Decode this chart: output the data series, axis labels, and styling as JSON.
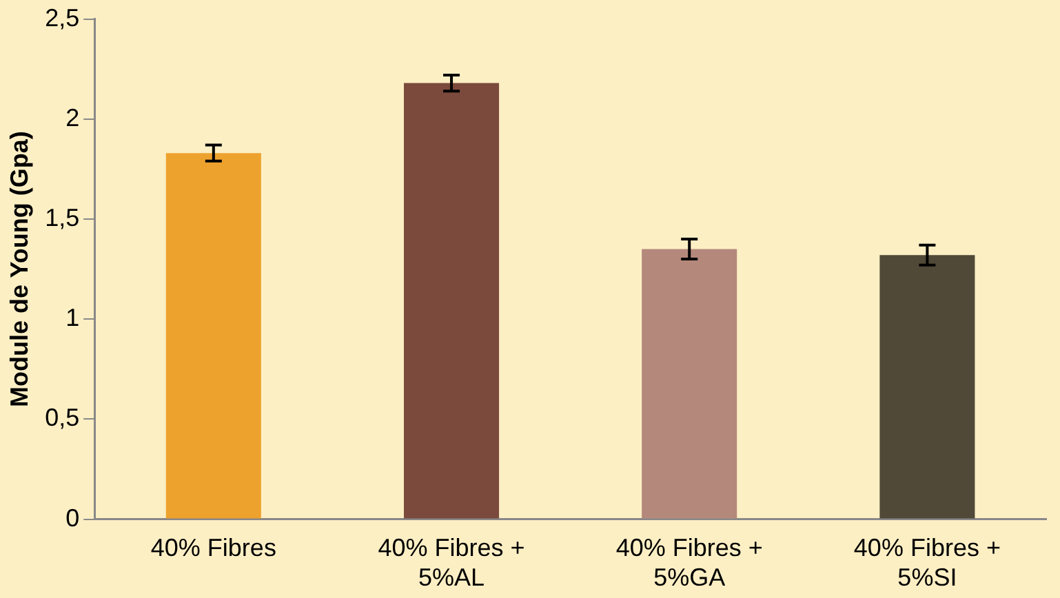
{
  "chart_data": {
    "type": "bar",
    "ylabel": "Module de Young (Gpa)",
    "categories": [
      "40% Fibres",
      "40% Fibres + 5%AL",
      "40% Fibres + 5%GA",
      "40% Fibres + 5%SI"
    ],
    "values": [
      1.83,
      2.18,
      1.35,
      1.32
    ],
    "colors": [
      "#eea22e",
      "#7b4a3c",
      "#b4897c",
      "#504937"
    ],
    "errors": [
      0.04,
      0.04,
      0.05,
      0.05
    ],
    "ylim": [
      0,
      2.5
    ],
    "yticks": [
      {
        "value": 0,
        "label": "0"
      },
      {
        "value": 0.5,
        "label": "0,5"
      },
      {
        "value": 1,
        "label": "1"
      },
      {
        "value": 1.5,
        "label": "1,5"
      },
      {
        "value": 2,
        "label": "2"
      },
      {
        "value": 2.5,
        "label": "2,5"
      }
    ],
    "grid": false,
    "legend": false
  }
}
